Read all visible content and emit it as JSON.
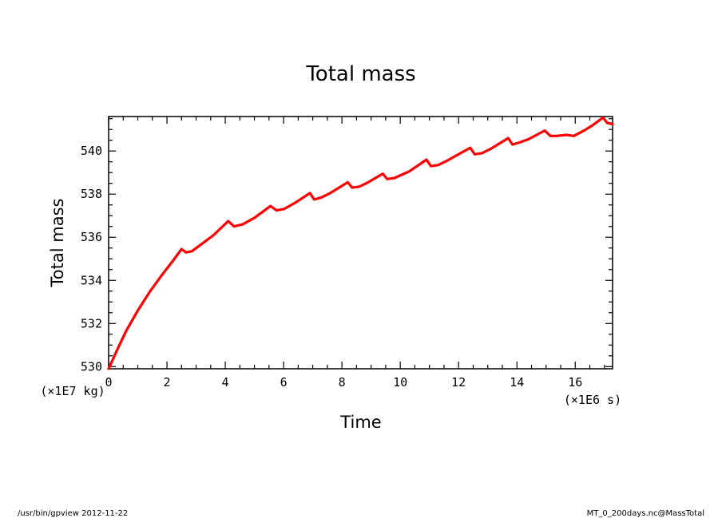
{
  "footer": {
    "left": "/usr/bin/gpview   2012-11-22",
    "right": "MT_0_200days.nc@MassTotal"
  },
  "chart_data": {
    "type": "line",
    "title": "Total mass",
    "xlabel": "Time",
    "ylabel": "Total mass",
    "x_unit": "(×1E6 s)",
    "y_unit": "(×1E7 kg)",
    "xlim": [
      0,
      17.28
    ],
    "ylim": [
      529.9,
      541.6
    ],
    "x_ticks": [
      0,
      2,
      4,
      6,
      8,
      10,
      12,
      14,
      16
    ],
    "y_ticks": [
      530,
      532,
      534,
      536,
      538,
      540
    ],
    "x_minor_step": 0.5,
    "y_minor_step": 0.5,
    "grid": false,
    "colors": {
      "line": "#ff0000",
      "axes": "#000000"
    },
    "series": [
      {
        "color": "#ff0000",
        "x": [
          0,
          0.3,
          0.6,
          1.0,
          1.4,
          1.8,
          2.2,
          2.5,
          2.65,
          2.85,
          3.2,
          3.6,
          4.1,
          4.3,
          4.6,
          5.0,
          5.55,
          5.75,
          6.0,
          6.4,
          6.9,
          7.05,
          7.3,
          7.6,
          8.2,
          8.35,
          8.6,
          8.9,
          9.4,
          9.55,
          9.8,
          10.3,
          10.9,
          11.05,
          11.3,
          11.6,
          12.4,
          12.55,
          12.8,
          13.1,
          13.7,
          13.85,
          14.1,
          14.4,
          14.95,
          15.15,
          15.35,
          15.7,
          15.95,
          16.3,
          16.6,
          16.95,
          17.1,
          17.28
        ],
        "y": [
          529.9,
          530.8,
          531.65,
          532.6,
          533.45,
          534.2,
          534.9,
          535.45,
          535.3,
          535.35,
          535.7,
          536.1,
          536.75,
          536.5,
          536.6,
          536.9,
          537.45,
          537.25,
          537.3,
          537.6,
          538.05,
          537.75,
          537.85,
          538.05,
          538.55,
          538.3,
          538.35,
          538.55,
          538.95,
          538.7,
          538.75,
          539.05,
          539.6,
          539.3,
          539.35,
          539.55,
          540.15,
          539.85,
          539.9,
          540.1,
          540.6,
          540.3,
          540.4,
          540.55,
          540.95,
          540.7,
          540.7,
          540.75,
          540.7,
          540.95,
          541.2,
          541.55,
          541.3,
          541.25
        ]
      }
    ]
  }
}
